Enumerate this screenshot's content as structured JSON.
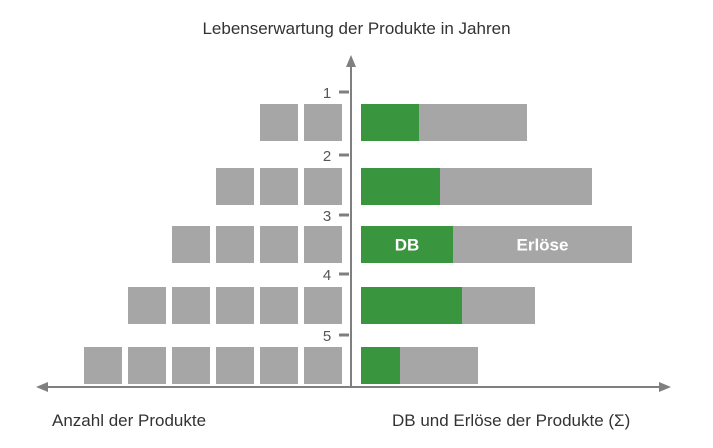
{
  "title": "Lebenserwartung der Produkte in Jahren",
  "xlabel_left": "Anzahl der Produkte",
  "xlabel_right": "DB und Erlöse der Produkte (Σ)",
  "colors": {
    "gray": "#a6a6a6",
    "green": "#3a963e",
    "axis": "#7f7f7f",
    "text": "#333333"
  },
  "chart_data": {
    "type": "bar",
    "categories": [
      "1",
      "2",
      "3",
      "4",
      "5"
    ],
    "products_count": [
      2,
      3,
      4,
      5,
      6
    ],
    "db_share": [
      0.35,
      0.34,
      0.34,
      0.58,
      0.33
    ],
    "bar_labels": {
      "row": 2,
      "db": "DB",
      "erloese": "Erlöse"
    }
  }
}
